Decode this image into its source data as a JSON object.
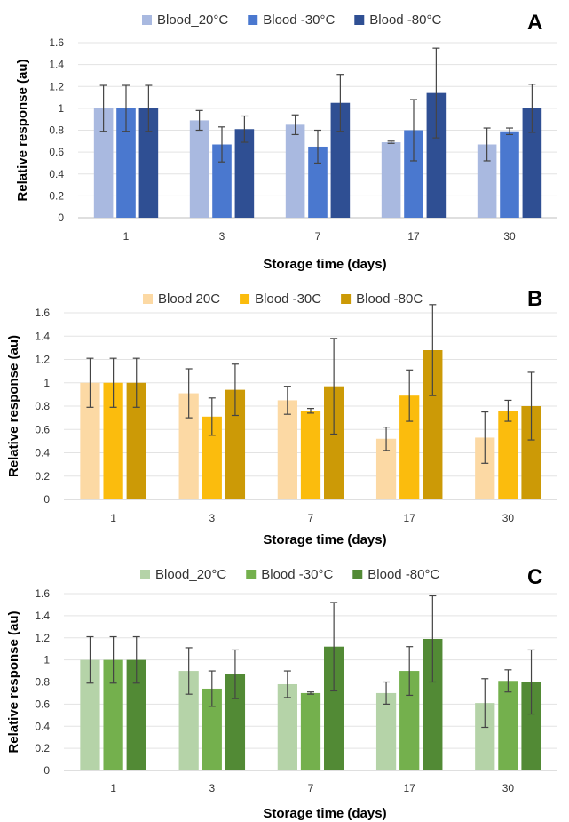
{
  "chart_data": [
    {
      "type": "bar",
      "panel_label": "A",
      "categories": [
        "1",
        "3",
        "7",
        "17",
        "30"
      ],
      "xlabel": "Storage time (days)",
      "ylabel": "Relative response (au)",
      "ylim": [
        0,
        1.6
      ],
      "yticks": [
        "0",
        "0.2",
        "0.4",
        "0.6",
        "0.8",
        "1",
        "1.2",
        "1.4",
        "1.6"
      ],
      "grid": true,
      "legend_position": "top",
      "series": [
        {
          "name": "Blood_20°C",
          "color": "#a9b9e0",
          "values": [
            1.0,
            0.89,
            0.85,
            0.69,
            0.67
          ],
          "errors": [
            0.21,
            0.09,
            0.09,
            0.01,
            0.15
          ]
        },
        {
          "name": "Blood -30°C",
          "color": "#4a78cf",
          "values": [
            1.0,
            0.67,
            0.65,
            0.8,
            0.79
          ],
          "errors": [
            0.21,
            0.16,
            0.15,
            0.28,
            0.03
          ]
        },
        {
          "name": "Blood -80°C",
          "color": "#2f4f93",
          "values": [
            1.0,
            0.81,
            1.05,
            1.14,
            1.0
          ],
          "errors": [
            0.21,
            0.12,
            0.26,
            0.41,
            0.22
          ]
        }
      ]
    },
    {
      "type": "bar",
      "panel_label": "B",
      "categories": [
        "1",
        "3",
        "7",
        "17",
        "30"
      ],
      "xlabel": "Storage time (days)",
      "ylabel": "Relative response (au)",
      "ylim": [
        0,
        1.6
      ],
      "yticks": [
        "0",
        "0.2",
        "0.4",
        "0.6",
        "0.8",
        "1",
        "1.2",
        "1.4",
        "1.6"
      ],
      "grid": true,
      "legend_position": "top",
      "series": [
        {
          "name": "Blood 20C",
          "color": "#fcd9a4",
          "values": [
            1.0,
            0.91,
            0.85,
            0.52,
            0.53
          ],
          "errors": [
            0.21,
            0.21,
            0.12,
            0.1,
            0.22
          ]
        },
        {
          "name": "Blood -30C",
          "color": "#fbbc0d",
          "values": [
            1.0,
            0.71,
            0.76,
            0.89,
            0.76
          ],
          "errors": [
            0.21,
            0.16,
            0.02,
            0.22,
            0.09
          ]
        },
        {
          "name": "Blood -80C",
          "color": "#cc9a06",
          "values": [
            1.0,
            0.94,
            0.97,
            1.28,
            0.8
          ],
          "errors": [
            0.21,
            0.22,
            0.41,
            0.39,
            0.29
          ]
        }
      ]
    },
    {
      "type": "bar",
      "panel_label": "C",
      "categories": [
        "1",
        "3",
        "7",
        "17",
        "30"
      ],
      "xlabel": "Storage time (days)",
      "ylabel": "Relative response (au)",
      "ylim": [
        0,
        1.6
      ],
      "yticks": [
        "0",
        "0.2",
        "0.4",
        "0.6",
        "0.8",
        "1",
        "1.2",
        "1.4",
        "1.6"
      ],
      "grid": true,
      "legend_position": "top",
      "series": [
        {
          "name": "Blood_20°C",
          "color": "#b5d3a8",
          "values": [
            1.0,
            0.9,
            0.78,
            0.7,
            0.61
          ],
          "errors": [
            0.21,
            0.21,
            0.12,
            0.1,
            0.22
          ]
        },
        {
          "name": "Blood -30°C",
          "color": "#74b04d",
          "values": [
            1.0,
            0.74,
            0.7,
            0.9,
            0.81
          ],
          "errors": [
            0.21,
            0.16,
            0.01,
            0.22,
            0.1
          ]
        },
        {
          "name": "Blood -80°C",
          "color": "#528a35",
          "values": [
            1.0,
            0.87,
            1.12,
            1.19,
            0.8
          ],
          "errors": [
            0.21,
            0.22,
            0.4,
            0.39,
            0.29
          ]
        }
      ]
    }
  ]
}
